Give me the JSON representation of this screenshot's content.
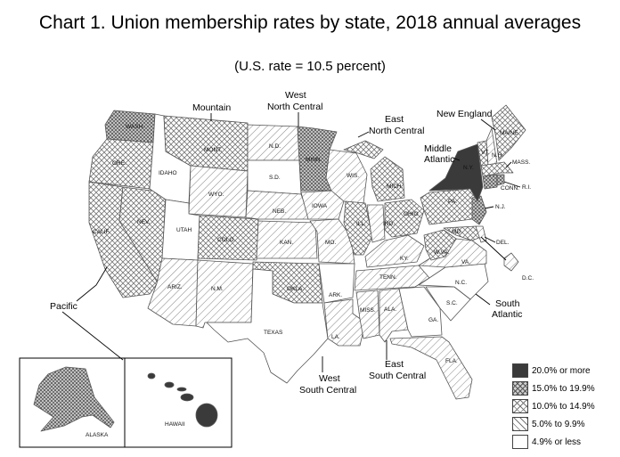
{
  "title": "Chart 1. Union membership rates by state, 2018 annual averages",
  "subtitle": "(U.S. rate = 10.5 percent)",
  "legend": [
    {
      "id": "c5",
      "label": "20.0% or more"
    },
    {
      "id": "c4",
      "label": "15.0% to 19.9%"
    },
    {
      "id": "c3",
      "label": "10.0% to 14.9%"
    },
    {
      "id": "c2",
      "label": "5.0% to 9.9%"
    },
    {
      "id": "c1",
      "label": "4.9% or less"
    }
  ],
  "regions": {
    "mountain": "Mountain",
    "west_north_central": [
      "West",
      "North Central"
    ],
    "east_north_central": [
      "East",
      "North Central"
    ],
    "new_england": "New England",
    "middle_atlantic": [
      "Middle",
      "Atlantic"
    ],
    "pacific": "Pacific",
    "south_atlantic": [
      "South",
      "Atlantic"
    ],
    "west_south_central": [
      "West",
      "South Central"
    ],
    "east_south_central": [
      "East",
      "South Central"
    ]
  },
  "states": {
    "wash": {
      "label": "WASH.",
      "cls": "c4"
    },
    "ore": {
      "label": "ORE.",
      "cls": "c3"
    },
    "calif": {
      "label": "CALIF.",
      "cls": "c3"
    },
    "nev": {
      "label": "NEV.",
      "cls": "c3"
    },
    "idaho": {
      "label": "IDAHO",
      "cls": "c1"
    },
    "mont": {
      "label": "MONT.",
      "cls": "c3"
    },
    "wyo": {
      "label": "WYO.",
      "cls": "c2"
    },
    "utah": {
      "label": "UTAH",
      "cls": "c1"
    },
    "colo": {
      "label": "COLO.",
      "cls": "c3"
    },
    "ariz": {
      "label": "ARIZ.",
      "cls": "c2"
    },
    "nm": {
      "label": "N.M.",
      "cls": "c2"
    },
    "nd": {
      "label": "N.D.",
      "cls": "c2"
    },
    "sd": {
      "label": "S.D.",
      "cls": "c1"
    },
    "neb": {
      "label": "NEB.",
      "cls": "c2"
    },
    "kan": {
      "label": "KAN.",
      "cls": "c2"
    },
    "okla": {
      "label": "OKLA.",
      "cls": "c3"
    },
    "texas": {
      "label": "TEXAS",
      "cls": "c1"
    },
    "minn": {
      "label": "MINN.",
      "cls": "c4"
    },
    "iowa": {
      "label": "IOWA",
      "cls": "c2"
    },
    "mo": {
      "label": "MO.",
      "cls": "c2"
    },
    "ark": {
      "label": "ARK.",
      "cls": "c1"
    },
    "la": {
      "label": "LA.",
      "cls": "c2"
    },
    "wis": {
      "label": "WIS.",
      "cls": "c2"
    },
    "ill": {
      "label": "ILL.",
      "cls": "c3"
    },
    "mich": {
      "label": "MICH.",
      "cls": "c3"
    },
    "ind": {
      "label": "IND.",
      "cls": "c2"
    },
    "ohio": {
      "label": "OHIO",
      "cls": "c3"
    },
    "ky": {
      "label": "KY.",
      "cls": "c2"
    },
    "tenn": {
      "label": "TENN.",
      "cls": "c2"
    },
    "miss": {
      "label": "MISS.",
      "cls": "c2"
    },
    "ala": {
      "label": "ALA.",
      "cls": "c2"
    },
    "ga": {
      "label": "GA.",
      "cls": "c1"
    },
    "fla": {
      "label": "FLA.",
      "cls": "c2"
    },
    "sc": {
      "label": "S.C.",
      "cls": "c1"
    },
    "nc": {
      "label": "N.C.",
      "cls": "c1"
    },
    "va": {
      "label": "VA.",
      "cls": "c2"
    },
    "wva": {
      "label": "W.VA.",
      "cls": "c3"
    },
    "md": {
      "label": "MD.",
      "cls": "c3"
    },
    "del": {
      "label": "DEL.",
      "cls": "c2"
    },
    "dc": {
      "label": "D.C.",
      "cls": "c2"
    },
    "pa": {
      "label": "PA.",
      "cls": "c3"
    },
    "nj": {
      "label": "N.J.",
      "cls": "c4"
    },
    "ny": {
      "label": "N.Y.",
      "cls": "c5"
    },
    "vt": {
      "label": "VT.",
      "cls": "c3"
    },
    "nh": {
      "label": "N.H.",
      "cls": "c2"
    },
    "maine": {
      "label": "MAINE",
      "cls": "c3"
    },
    "mass": {
      "label": "MASS.",
      "cls": "c3"
    },
    "ri": {
      "label": "R.I.",
      "cls": "c4"
    },
    "conn": {
      "label": "CONN.",
      "cls": "c4"
    },
    "alaska": {
      "label": "ALASKA",
      "cls": "c4"
    },
    "hawaii": {
      "label": "HAWAII",
      "cls": "c5"
    }
  }
}
